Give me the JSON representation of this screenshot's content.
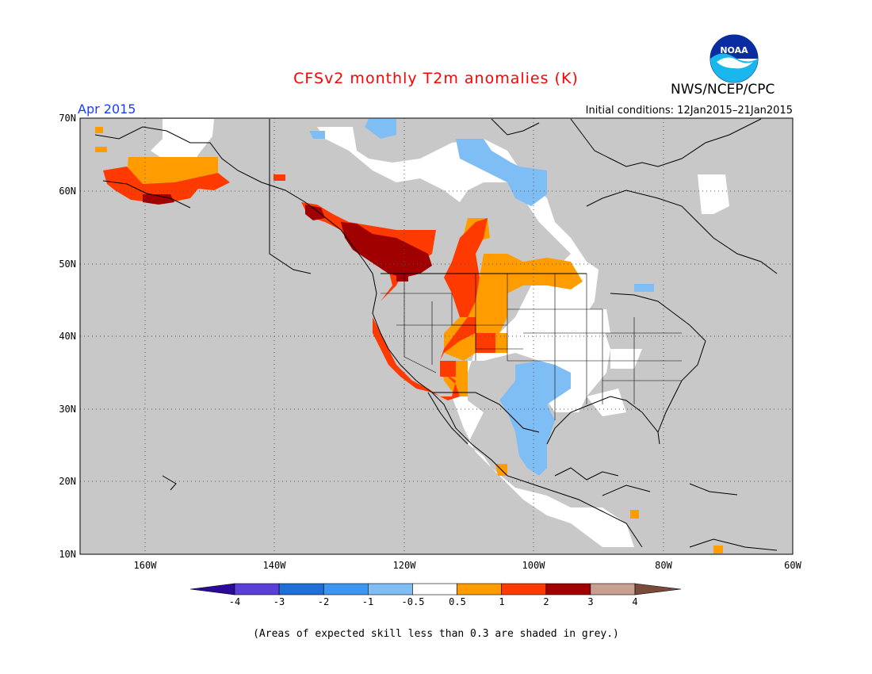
{
  "title": "CFSv2 monthly T2m anomalies (K)",
  "agency": "NWS/NCEP/CPC",
  "logo_text": "NOAA",
  "month": "Apr 2015",
  "initial_conditions": "Initial conditions: 12Jan2015–21Jan2015",
  "footnote": "(Areas of expected skill less than 0.3 are shaded in grey.)",
  "colors": {
    "ocean": "#c8c8c8",
    "land_low_skill": "#c8c8c8",
    "neutral": "#ffffff",
    "title": "#ff0000",
    "month": "#1a3cff"
  },
  "map": {
    "lat_labels": [
      "70N",
      "60N",
      "50N",
      "40N",
      "30N",
      "20N",
      "10N"
    ],
    "lon_labels": [
      "160W",
      "140W",
      "120W",
      "100W",
      "80W",
      "60W"
    ],
    "lat_range": [
      10,
      70
    ],
    "lon_range": [
      -170,
      -60
    ],
    "grid": "dotted every 10 degrees"
  },
  "colorbar": {
    "tick_labels": [
      "-4",
      "-3",
      "-2",
      "-1",
      "-0.5",
      "0.5",
      "1",
      "2",
      "3",
      "4"
    ],
    "colors": [
      "#2a0a96",
      "#5a3fd6",
      "#1f6fd6",
      "#3f96f0",
      "#7fbef4",
      "#ffffff",
      "#ff9d00",
      "#ff3a00",
      "#a00000",
      "#c8a090",
      "#7a4a3a"
    ]
  },
  "chart_data": {
    "type": "heatmap",
    "title": "CFSv2 monthly T2m anomalies (K)",
    "valid_month": "Apr 2015",
    "regions": [
      {
        "region": "Alaska south coast / Kenai",
        "anomaly_bin": "1 to 2"
      },
      {
        "region": "Alaska interior south",
        "anomaly_bin": "0.5 to 1"
      },
      {
        "region": "Alaska southwest",
        "anomaly_bin": "2 to 3"
      },
      {
        "region": "Pacific Northwest / British Columbia",
        "anomaly_bin": "2 to 3"
      },
      {
        "region": "US West / Great Basin",
        "anomaly_bin": "1 to 2"
      },
      {
        "region": "California / Southwest",
        "anomaly_bin": "1 to 2"
      },
      {
        "region": "Alberta / Saskatchewan",
        "anomaly_bin": "1 to 2"
      },
      {
        "region": "Northern Plains / Southern Canadian Prairies",
        "anomaly_bin": "0.5 to 1"
      },
      {
        "region": "Four Corners south / Arizona",
        "anomaly_bin": "0.5 to 1"
      },
      {
        "region": "Texas / Southern Plains",
        "anomaly_bin": "-1 to -0.5"
      },
      {
        "region": "Nunavut / Hudson Bay west",
        "anomaly_bin": "-1 to -0.5"
      },
      {
        "region": "Eastern US",
        "anomaly_bin": "-0.5 to 0.5"
      },
      {
        "region": "Mexico central",
        "anomaly_bin": "-0.5 to 0.5"
      },
      {
        "region": "Elsewhere",
        "anomaly_bin": "skill < 0.3 (grey)"
      }
    ]
  }
}
